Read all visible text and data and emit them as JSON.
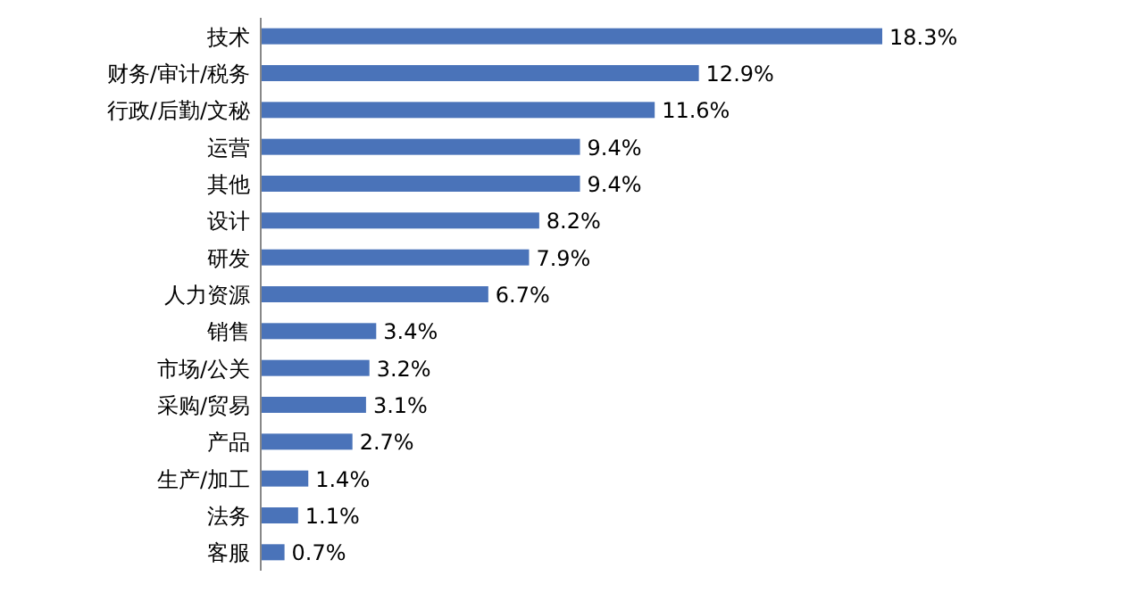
{
  "chart_data": {
    "type": "bar",
    "orientation": "horizontal",
    "categories": [
      "技术",
      "财务/审计/税务",
      "行政/后勤/文秘",
      "运营",
      "其他",
      "设计",
      "研发",
      "人力资源",
      "销售",
      "市场/公关",
      "采购/贸易",
      "产品",
      "生产/加工",
      "法务",
      "客服"
    ],
    "values": [
      18.3,
      12.9,
      11.6,
      9.4,
      9.4,
      8.2,
      7.9,
      6.7,
      3.4,
      3.2,
      3.1,
      2.7,
      1.4,
      1.1,
      0.7
    ],
    "value_labels": [
      "18.3%",
      "12.9%",
      "11.6%",
      "9.4%",
      "9.4%",
      "8.2%",
      "7.9%",
      "6.7%",
      "3.4%",
      "3.2%",
      "3.1%",
      "2.7%",
      "1.4%",
      "1.1%",
      "0.7%"
    ],
    "color": "#4a73b9"
  }
}
